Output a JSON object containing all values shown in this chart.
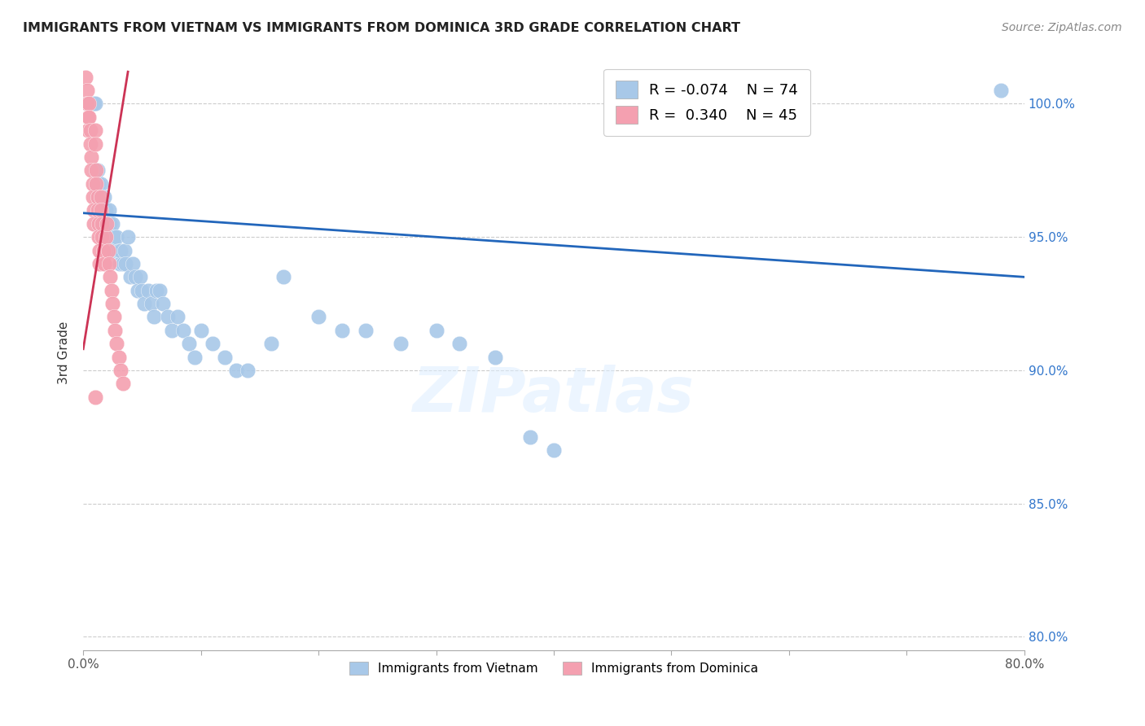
{
  "title": "IMMIGRANTS FROM VIETNAM VS IMMIGRANTS FROM DOMINICA 3RD GRADE CORRELATION CHART",
  "source": "Source: ZipAtlas.com",
  "ylabel": "3rd Grade",
  "y_ticks": [
    80.0,
    85.0,
    90.0,
    95.0,
    100.0
  ],
  "xlim": [
    0.0,
    0.8
  ],
  "ylim": [
    79.5,
    101.8
  ],
  "vietnam_color": "#a8c8e8",
  "dominica_color": "#f4a0b0",
  "vietnam_line_color": "#2266bb",
  "dominica_line_color": "#cc3355",
  "R_vietnam": -0.074,
  "N_vietnam": 74,
  "R_dominica": 0.34,
  "N_dominica": 45,
  "legend_label_vietnam": "Immigrants from Vietnam",
  "legend_label_dominica": "Immigrants from Dominica",
  "watermark": "ZIPatlas",
  "vietnam_x": [
    0.003,
    0.004,
    0.005,
    0.005,
    0.006,
    0.007,
    0.007,
    0.008,
    0.009,
    0.01,
    0.01,
    0.011,
    0.012,
    0.013,
    0.013,
    0.014,
    0.015,
    0.015,
    0.016,
    0.017,
    0.018,
    0.019,
    0.02,
    0.021,
    0.022,
    0.023,
    0.024,
    0.025,
    0.026,
    0.027,
    0.028,
    0.03,
    0.031,
    0.032,
    0.034,
    0.035,
    0.036,
    0.038,
    0.04,
    0.042,
    0.044,
    0.046,
    0.048,
    0.05,
    0.052,
    0.055,
    0.058,
    0.06,
    0.062,
    0.065,
    0.068,
    0.072,
    0.075,
    0.08,
    0.085,
    0.09,
    0.095,
    0.1,
    0.11,
    0.12,
    0.13,
    0.14,
    0.16,
    0.17,
    0.2,
    0.22,
    0.24,
    0.27,
    0.3,
    0.32,
    0.35,
    0.38,
    0.4,
    0.78
  ],
  "vietnam_y": [
    100.0,
    100.0,
    100.0,
    100.0,
    100.0,
    100.0,
    100.0,
    100.0,
    100.0,
    100.0,
    97.5,
    97.0,
    97.5,
    97.0,
    96.5,
    96.0,
    97.0,
    96.5,
    96.0,
    95.5,
    96.5,
    96.0,
    95.5,
    95.0,
    96.0,
    95.5,
    95.0,
    95.5,
    95.0,
    94.5,
    95.0,
    94.5,
    94.0,
    94.5,
    94.0,
    94.5,
    94.0,
    95.0,
    93.5,
    94.0,
    93.5,
    93.0,
    93.5,
    93.0,
    92.5,
    93.0,
    92.5,
    92.0,
    93.0,
    93.0,
    92.5,
    92.0,
    91.5,
    92.0,
    91.5,
    91.0,
    90.5,
    91.5,
    91.0,
    90.5,
    90.0,
    90.0,
    91.0,
    93.5,
    92.0,
    91.5,
    91.5,
    91.0,
    91.5,
    91.0,
    90.5,
    87.5,
    87.0,
    100.5
  ],
  "dominica_x": [
    0.002,
    0.003,
    0.003,
    0.004,
    0.004,
    0.005,
    0.005,
    0.006,
    0.006,
    0.007,
    0.007,
    0.008,
    0.008,
    0.009,
    0.009,
    0.01,
    0.01,
    0.011,
    0.011,
    0.012,
    0.012,
    0.013,
    0.013,
    0.014,
    0.014,
    0.015,
    0.015,
    0.016,
    0.016,
    0.017,
    0.018,
    0.019,
    0.02,
    0.021,
    0.022,
    0.023,
    0.024,
    0.025,
    0.026,
    0.027,
    0.028,
    0.03,
    0.032,
    0.034,
    0.01
  ],
  "dominica_y": [
    101.0,
    100.5,
    100.0,
    99.5,
    99.0,
    100.0,
    99.5,
    99.0,
    98.5,
    98.0,
    97.5,
    97.0,
    96.5,
    96.0,
    95.5,
    99.0,
    98.5,
    97.5,
    97.0,
    96.5,
    96.0,
    95.5,
    95.0,
    94.5,
    94.0,
    96.5,
    96.0,
    95.5,
    95.0,
    94.5,
    94.0,
    95.0,
    95.5,
    94.5,
    94.0,
    93.5,
    93.0,
    92.5,
    92.0,
    91.5,
    91.0,
    90.5,
    90.0,
    89.5,
    89.0
  ],
  "vietnam_line_x": [
    0.0,
    0.8
  ],
  "vietnam_line_y": [
    95.9,
    93.5
  ],
  "dominica_line_x": [
    0.0,
    0.038
  ],
  "dominica_line_y": [
    90.8,
    101.2
  ]
}
